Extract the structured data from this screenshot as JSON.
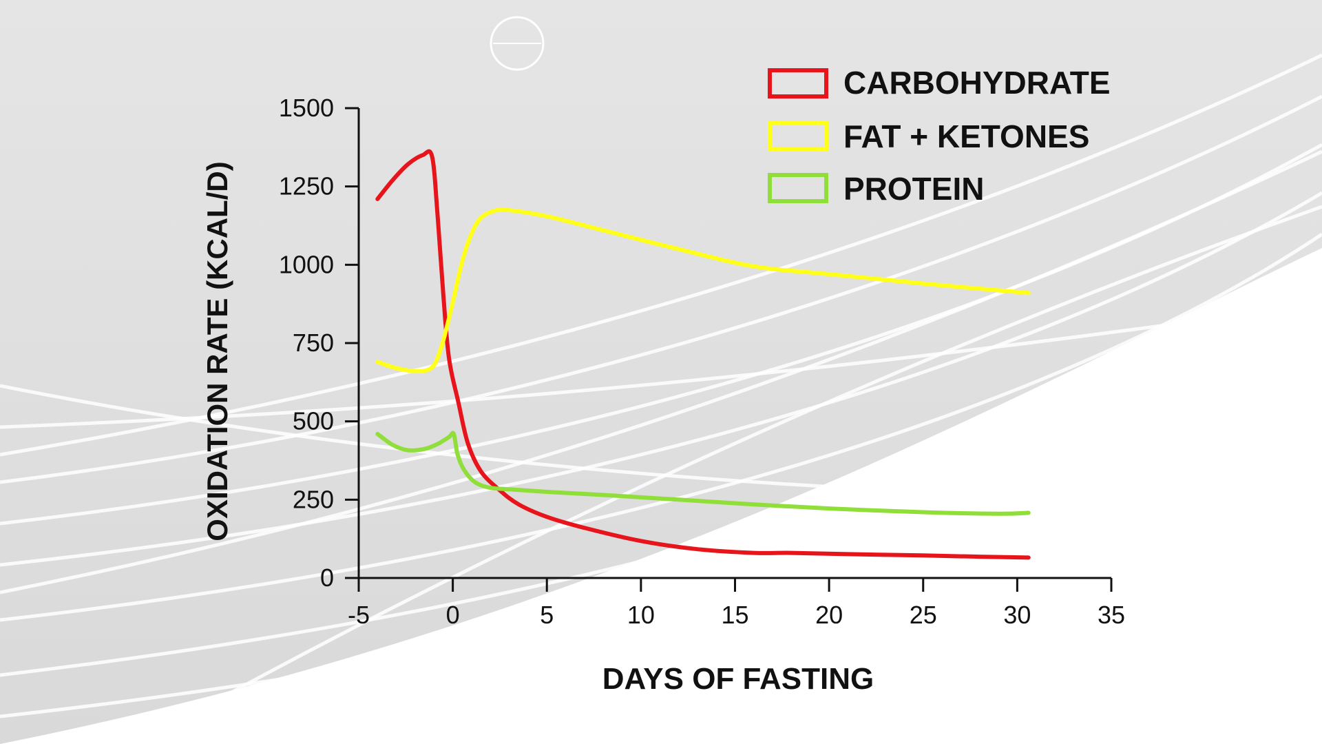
{
  "colors": {
    "background_top": "#e3e3e3",
    "background_bottom": "#ffffff",
    "axis": "#111111"
  },
  "chart_data": {
    "type": "line",
    "title": "",
    "xlabel": "DAYS OF FASTING",
    "ylabel": "OXIDATION RATE (KCAL/D)",
    "xlim": [
      -5,
      35
    ],
    "ylim": [
      0,
      1500
    ],
    "x_ticks": [
      -5,
      0,
      5,
      10,
      15,
      20,
      25,
      30,
      35
    ],
    "y_ticks": [
      0,
      250,
      500,
      750,
      1000,
      1250,
      1500
    ],
    "x_tick_labels": [
      "-5",
      "0",
      "5",
      "10",
      "15",
      "20",
      "25",
      "30",
      "35"
    ],
    "y_tick_labels": [
      "0",
      "250",
      "500",
      "750",
      "1000",
      "1250",
      "1500"
    ],
    "grid": false,
    "legend_position": "top-right",
    "series": [
      {
        "name": "CARBOHYDRATE",
        "color": "#e8141b",
        "points": [
          [
            -4,
            1210
          ],
          [
            -3.2,
            1270
          ],
          [
            -2.4,
            1320
          ],
          [
            -1.6,
            1350
          ],
          [
            -1.1,
            1345
          ],
          [
            -0.8,
            1150
          ],
          [
            -0.5,
            900
          ],
          [
            -0.2,
            700
          ],
          [
            0.3,
            560
          ],
          [
            0.8,
            430
          ],
          [
            1.5,
            340
          ],
          [
            2.5,
            280
          ],
          [
            3.5,
            235
          ],
          [
            5,
            195
          ],
          [
            7,
            160
          ],
          [
            10,
            118
          ],
          [
            13,
            92
          ],
          [
            16,
            80
          ],
          [
            18,
            80
          ],
          [
            21,
            76
          ],
          [
            25,
            72
          ],
          [
            28,
            68
          ],
          [
            30.6,
            65
          ]
        ]
      },
      {
        "name": "FAT + KETONES",
        "color": "#ffff1a",
        "points": [
          [
            -4,
            690
          ],
          [
            -3,
            670
          ],
          [
            -2,
            660
          ],
          [
            -1.3,
            665
          ],
          [
            -0.9,
            690
          ],
          [
            -0.5,
            760
          ],
          [
            0,
            880
          ],
          [
            0.5,
            1010
          ],
          [
            1,
            1100
          ],
          [
            1.5,
            1150
          ],
          [
            2.2,
            1172
          ],
          [
            3,
            1174
          ],
          [
            5,
            1155
          ],
          [
            8,
            1110
          ],
          [
            12,
            1050
          ],
          [
            16,
            995
          ],
          [
            20,
            970
          ],
          [
            25,
            940
          ],
          [
            30.6,
            910
          ]
        ]
      },
      {
        "name": "PROTEIN",
        "color": "#8fde3a",
        "points": [
          [
            -4,
            460
          ],
          [
            -3.2,
            425
          ],
          [
            -2.4,
            408
          ],
          [
            -1.5,
            412
          ],
          [
            -0.8,
            428
          ],
          [
            -0.2,
            450
          ],
          [
            0.05,
            460
          ],
          [
            0.25,
            395
          ],
          [
            0.6,
            345
          ],
          [
            1.2,
            305
          ],
          [
            2,
            288
          ],
          [
            3,
            283
          ],
          [
            5,
            275
          ],
          [
            8,
            265
          ],
          [
            12,
            250
          ],
          [
            16,
            235
          ],
          [
            20,
            222
          ],
          [
            25,
            210
          ],
          [
            29,
            205
          ],
          [
            30.6,
            208
          ]
        ]
      }
    ]
  }
}
